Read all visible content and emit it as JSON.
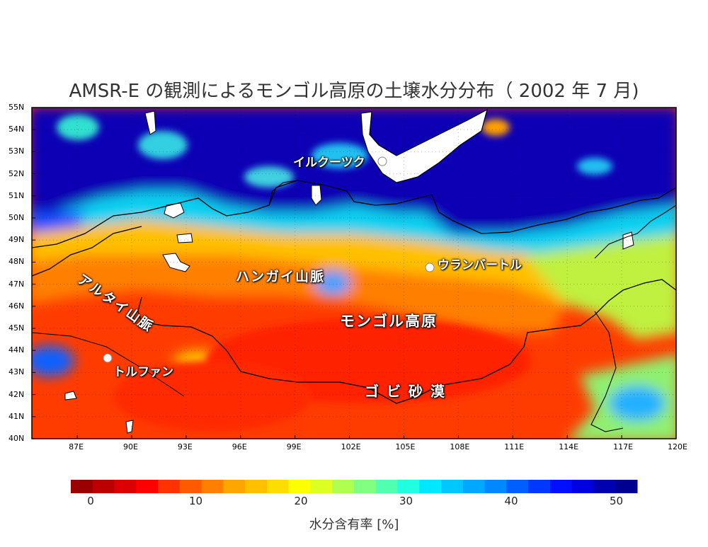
{
  "title": "AMSR-E の観測によるモンゴル高原の土壌水分分布（ 2002 年 7 月)",
  "map": {
    "lat_labels": [
      "55N",
      "54N",
      "53N",
      "52N",
      "51N",
      "50N",
      "49N",
      "48N",
      "47N",
      "46N",
      "45N",
      "44N",
      "43N",
      "42N",
      "41N",
      "40N"
    ],
    "lon_labels": [
      "87E",
      "90E",
      "93E",
      "96E",
      "99E",
      "102E",
      "105E",
      "108E",
      "111E",
      "114E",
      "117E",
      "120E"
    ],
    "lat_range": [
      40,
      55
    ],
    "lon_range": [
      84.5,
      120
    ],
    "places": {
      "irkutsk": "イルクーツク",
      "ulaanbaatar": "ウランバートル",
      "turpan": "トルファン",
      "altai": "アルタイ山脈",
      "khangai": "ハンガイ山脈",
      "mongolian_plateau": "モンゴル高原",
      "gobi": "ゴ ビ 砂 漠"
    }
  },
  "colorbar": {
    "ticks": [
      "0",
      "10",
      "20",
      "30",
      "40",
      "50"
    ],
    "label": "水分含有率 [%]",
    "colors": [
      "#990000",
      "#bb0000",
      "#dd0000",
      "#ff0000",
      "#ff3300",
      "#ff5a00",
      "#ff8000",
      "#ffa500",
      "#ffc000",
      "#ffdd00",
      "#ffff00",
      "#ddff22",
      "#b0ff50",
      "#80ff80",
      "#50ffb0",
      "#20ffe0",
      "#00e8ff",
      "#00c8ff",
      "#00a8ff",
      "#0088ff",
      "#0060ff",
      "#0038ff",
      "#0010ff",
      "#0000e0",
      "#0000b0",
      "#000090"
    ]
  }
}
